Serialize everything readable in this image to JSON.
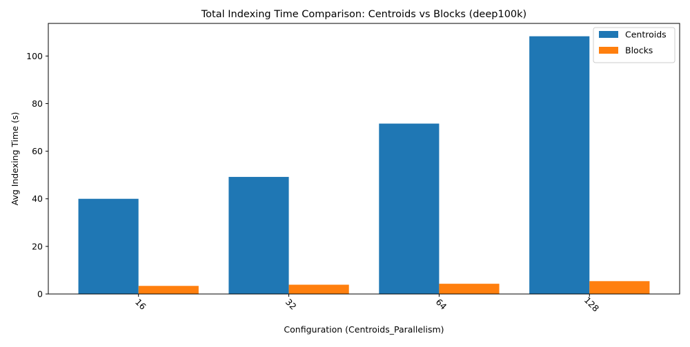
{
  "chart_data": {
    "type": "bar",
    "title": "Total Indexing Time Comparison: Centroids vs Blocks (deep100k)",
    "xlabel": "Configuration (Centroids_Parallelism)",
    "ylabel": "Avg Indexing Time (s)",
    "categories": [
      "16",
      "32",
      "64",
      "128"
    ],
    "series": [
      {
        "name": "Centroids",
        "color": "#1f77b4",
        "values": [
          40.0,
          49.2,
          71.6,
          108.3
        ]
      },
      {
        "name": "Blocks",
        "color": "#ff7f0e",
        "values": [
          3.4,
          3.9,
          4.3,
          5.4
        ]
      }
    ],
    "ylim": [
      0,
      113.7
    ],
    "yticks": [
      0,
      20,
      40,
      60,
      80,
      100
    ],
    "grid": false,
    "legend_position": "top-right",
    "xtick_rotation": "45 degrees"
  }
}
